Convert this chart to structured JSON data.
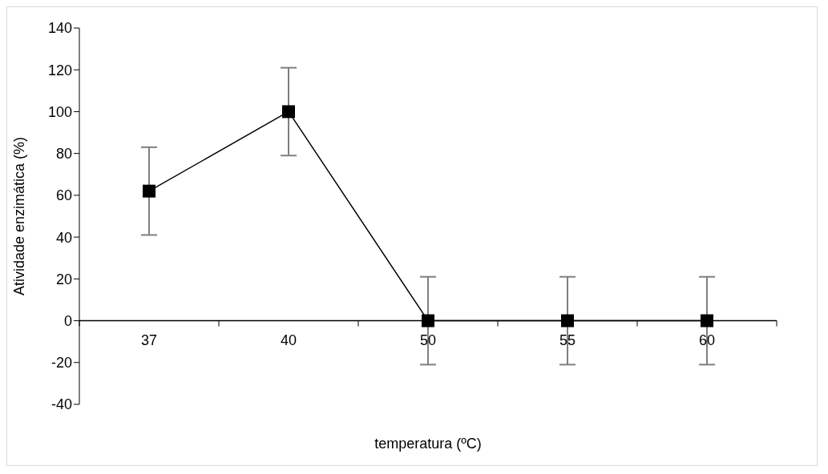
{
  "chart_data": {
    "type": "line",
    "xlabel": "temperatura (ºC)",
    "ylabel": "Atividade enzimática (%)",
    "categories": [
      "37",
      "40",
      "50",
      "55",
      "60"
    ],
    "series": [
      {
        "color": "#000000",
        "values": [
          62,
          100,
          0,
          0,
          0
        ],
        "errors": [
          21,
          21,
          21,
          21,
          21
        ]
      }
    ],
    "ylim": [
      -40,
      140
    ],
    "yticks": [
      -40,
      -20,
      0,
      20,
      40,
      60,
      80,
      100,
      120,
      140
    ],
    "marker": "square",
    "line_style": "solid"
  }
}
